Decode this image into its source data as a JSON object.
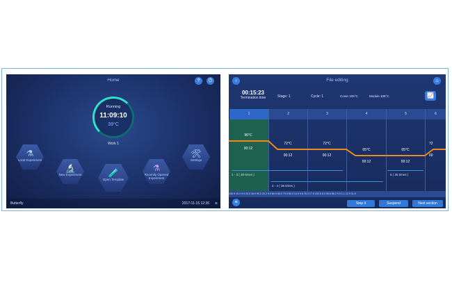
{
  "home": {
    "title": "Home",
    "status": "Running",
    "time": "11:09:10",
    "temperature": "39°C",
    "file_name": "Work 1",
    "tiles": {
      "local": "Local Experiment",
      "new": "New Experiment",
      "open": "Open Template",
      "recent": "Recently Opened Experiment",
      "settings": "Settings"
    },
    "footer_left": "Butterfly",
    "footer_right": "2017-11-15  12:36"
  },
  "edit": {
    "title": "File editing",
    "termination_time": "00:15:23",
    "termination_label": "Termination time",
    "stage": "Stage:  1",
    "cycle": "Cycle:  1",
    "cover": "Cover 105°C",
    "module": "Module 105°C",
    "columns": [
      "1",
      "2",
      "3",
      "4",
      "5",
      "6"
    ],
    "steps": [
      {
        "temp": "96°C",
        "time": "00:12"
      },
      {
        "temp": "72°C",
        "time": "00:12"
      },
      {
        "temp": "72°C",
        "time": "00:12"
      },
      {
        "temp": "65°C",
        "time": "00:12"
      },
      {
        "temp": "65°C",
        "time": "00:12"
      },
      {
        "temp": "72",
        "time": "00"
      }
    ],
    "cycles": [
      "1 - 3 ( 30 times )",
      "2 - 4 ( 35 times )",
      "5 ( 35 times )"
    ],
    "values_strip": "130.9  10.9  9.9  20.0  18.9  90.2  20.2  9.9  80.9  60.0  79.9  60.3  10.9  9.6  76.3  17.9 102.5  8.3  55.6  66.2  9.9  1.1  12.9  11.9",
    "buttons": {
      "step": "Step it",
      "suspend": "Suspend",
      "next": "Next section"
    }
  }
}
